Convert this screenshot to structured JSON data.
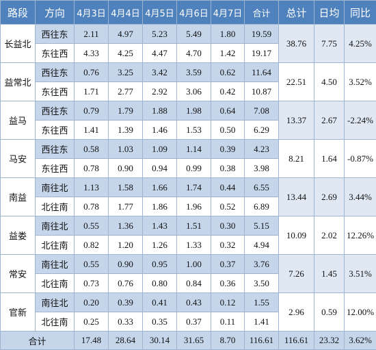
{
  "header": {
    "road": "路段",
    "direction": "方向",
    "days": [
      "4月3日",
      "4月4日",
      "4月5日",
      "4月6日",
      "4月7日"
    ],
    "subtotal": "合计",
    "total": "总计",
    "daily_avg": "日均",
    "yoy": "同比"
  },
  "roads": [
    {
      "name": "长益北",
      "rows": [
        {
          "dir": "西往东",
          "values": [
            "2.11",
            "4.97",
            "5.23",
            "5.49",
            "1.80"
          ],
          "subtotal": "19.59"
        },
        {
          "dir": "东往西",
          "values": [
            "4.33",
            "4.25",
            "4.47",
            "4.70",
            "1.42"
          ],
          "subtotal": "19.17"
        }
      ],
      "total": "38.76",
      "daily_avg": "7.75",
      "yoy": "4.25%"
    },
    {
      "name": "益常北",
      "rows": [
        {
          "dir": "西往东",
          "values": [
            "0.76",
            "3.25",
            "3.42",
            "3.59",
            "0.62"
          ],
          "subtotal": "11.64"
        },
        {
          "dir": "东往西",
          "values": [
            "1.71",
            "2.77",
            "2.92",
            "3.06",
            "0.42"
          ],
          "subtotal": "10.87"
        }
      ],
      "total": "22.51",
      "daily_avg": "4.50",
      "yoy": "3.52%"
    },
    {
      "name": "益马",
      "rows": [
        {
          "dir": "西往东",
          "values": [
            "0.79",
            "1.79",
            "1.88",
            "1.98",
            "0.64"
          ],
          "subtotal": "7.08"
        },
        {
          "dir": "东往西",
          "values": [
            "1.41",
            "1.39",
            "1.46",
            "1.53",
            "0.50"
          ],
          "subtotal": "6.29"
        }
      ],
      "total": "13.37",
      "daily_avg": "2.67",
      "yoy": "-2.24%"
    },
    {
      "name": "马安",
      "rows": [
        {
          "dir": "西往东",
          "values": [
            "0.58",
            "1.03",
            "1.09",
            "1.14",
            "0.39"
          ],
          "subtotal": "4.23"
        },
        {
          "dir": "东往西",
          "values": [
            "0.78",
            "0.90",
            "0.94",
            "0.99",
            "0.38"
          ],
          "subtotal": "3.98"
        }
      ],
      "total": "8.21",
      "daily_avg": "1.64",
      "yoy": "-0.87%"
    },
    {
      "name": "南益",
      "rows": [
        {
          "dir": "南往北",
          "values": [
            "1.13",
            "1.58",
            "1.66",
            "1.74",
            "0.44"
          ],
          "subtotal": "6.55"
        },
        {
          "dir": "北往南",
          "values": [
            "0.78",
            "1.77",
            "1.86",
            "1.96",
            "0.52"
          ],
          "subtotal": "6.89"
        }
      ],
      "total": "13.44",
      "daily_avg": "2.69",
      "yoy": "3.44%"
    },
    {
      "name": "益娄",
      "rows": [
        {
          "dir": "南往北",
          "values": [
            "0.55",
            "1.36",
            "1.43",
            "1.51",
            "0.30"
          ],
          "subtotal": "5.15"
        },
        {
          "dir": "北往南",
          "values": [
            "0.82",
            "1.20",
            "1.26",
            "1.33",
            "0.32"
          ],
          "subtotal": "4.94"
        }
      ],
      "total": "10.09",
      "daily_avg": "2.02",
      "yoy": "12.26%"
    },
    {
      "name": "常安",
      "rows": [
        {
          "dir": "南往北",
          "values": [
            "0.55",
            "0.90",
            "0.95",
            "1.00",
            "0.37"
          ],
          "subtotal": "3.76"
        },
        {
          "dir": "北往南",
          "values": [
            "0.73",
            "0.76",
            "0.80",
            "0.84",
            "0.36"
          ],
          "subtotal": "3.50"
        }
      ],
      "total": "7.26",
      "daily_avg": "1.45",
      "yoy": "3.51%"
    },
    {
      "name": "官新",
      "rows": [
        {
          "dir": "南往北",
          "values": [
            "0.20",
            "0.39",
            "0.41",
            "0.43",
            "0.12"
          ],
          "subtotal": "1.55"
        },
        {
          "dir": "北往南",
          "values": [
            "0.25",
            "0.33",
            "0.35",
            "0.37",
            "0.11"
          ],
          "subtotal": "1.41"
        }
      ],
      "total": "2.96",
      "daily_avg": "0.59",
      "yoy": "12.00%"
    }
  ],
  "footer": {
    "label": "合计",
    "values": [
      "17.48",
      "28.64",
      "30.14",
      "31.65",
      "8.70"
    ],
    "subtotal": "116.61",
    "total": "116.61",
    "daily_avg": "23.32",
    "yoy": "3.62%"
  },
  "colors": {
    "header_bg": "#4f81bd",
    "band_bg": "#c5d5ea",
    "merged_shade_bg": "#dfe8f3",
    "border": "#9fb5cf"
  }
}
